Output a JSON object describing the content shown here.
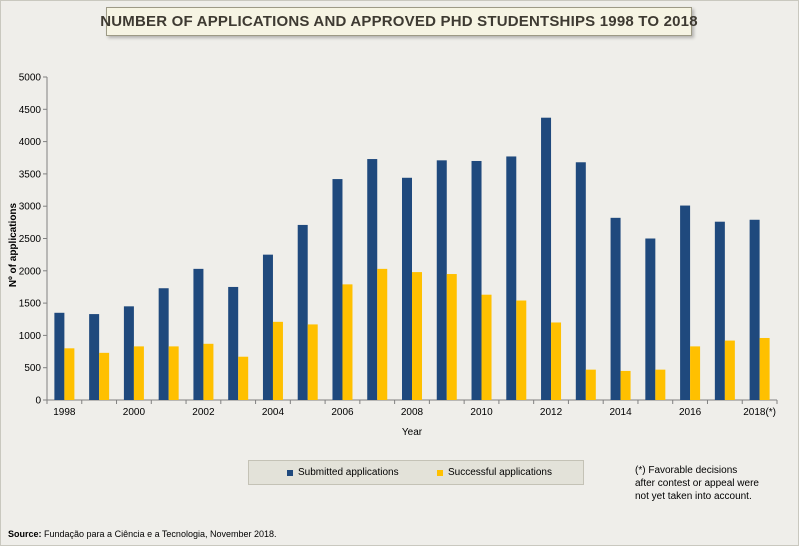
{
  "title": "NUMBER OF APPLICATIONS AND APPROVED PHD STUDENTSHIPS 1998 TO 2018",
  "chart_data": {
    "type": "bar",
    "title": "NUMBER OF APPLICATIONS AND APPROVED PHD STUDENTSHIPS 1998 TO 2018",
    "xlabel": "Year",
    "ylabel": "Nº of applications",
    "ylim": [
      0,
      5000
    ],
    "yticks": [
      0,
      500,
      1000,
      1500,
      2000,
      2500,
      3000,
      3500,
      4000,
      4500,
      5000
    ],
    "categories": [
      "1998",
      "1999",
      "2000",
      "2001",
      "2002",
      "2003",
      "2004",
      "2005",
      "2006",
      "2007",
      "2008",
      "2009",
      "2010",
      "2011",
      "2012",
      "2013",
      "2014",
      "2015",
      "2016",
      "2017",
      "2018(*)"
    ],
    "xtick_labels": [
      "1998",
      "",
      "2000",
      "",
      "2002",
      "",
      "2004",
      "",
      "2006",
      "",
      "2008",
      "",
      "2010",
      "",
      "2012",
      "",
      "2014",
      "",
      "2016",
      "",
      "2018(*)"
    ],
    "series": [
      {
        "name": "Submitted applications",
        "color": "#1f497d",
        "values": [
          1350,
          1330,
          1450,
          1730,
          2030,
          1750,
          2250,
          2710,
          3420,
          3730,
          3440,
          3710,
          3700,
          3770,
          4370,
          3680,
          2820,
          2500,
          3010,
          2760,
          2790
        ]
      },
      {
        "name": "Successful applications",
        "color": "#ffc000",
        "values": [
          800,
          730,
          830,
          830,
          870,
          670,
          1210,
          1170,
          1790,
          2030,
          1980,
          1950,
          1630,
          1540,
          1200,
          470,
          450,
          470,
          830,
          920,
          960
        ]
      }
    ],
    "legend_position": "bottom",
    "grid": false
  },
  "note": [
    "(*) Favorable decisions",
    "after contest or appeal were",
    "not yet taken into account."
  ],
  "source": {
    "label": "Source:",
    "text": " Fundação para a Ciência e a Tecnologia, November 2018."
  }
}
